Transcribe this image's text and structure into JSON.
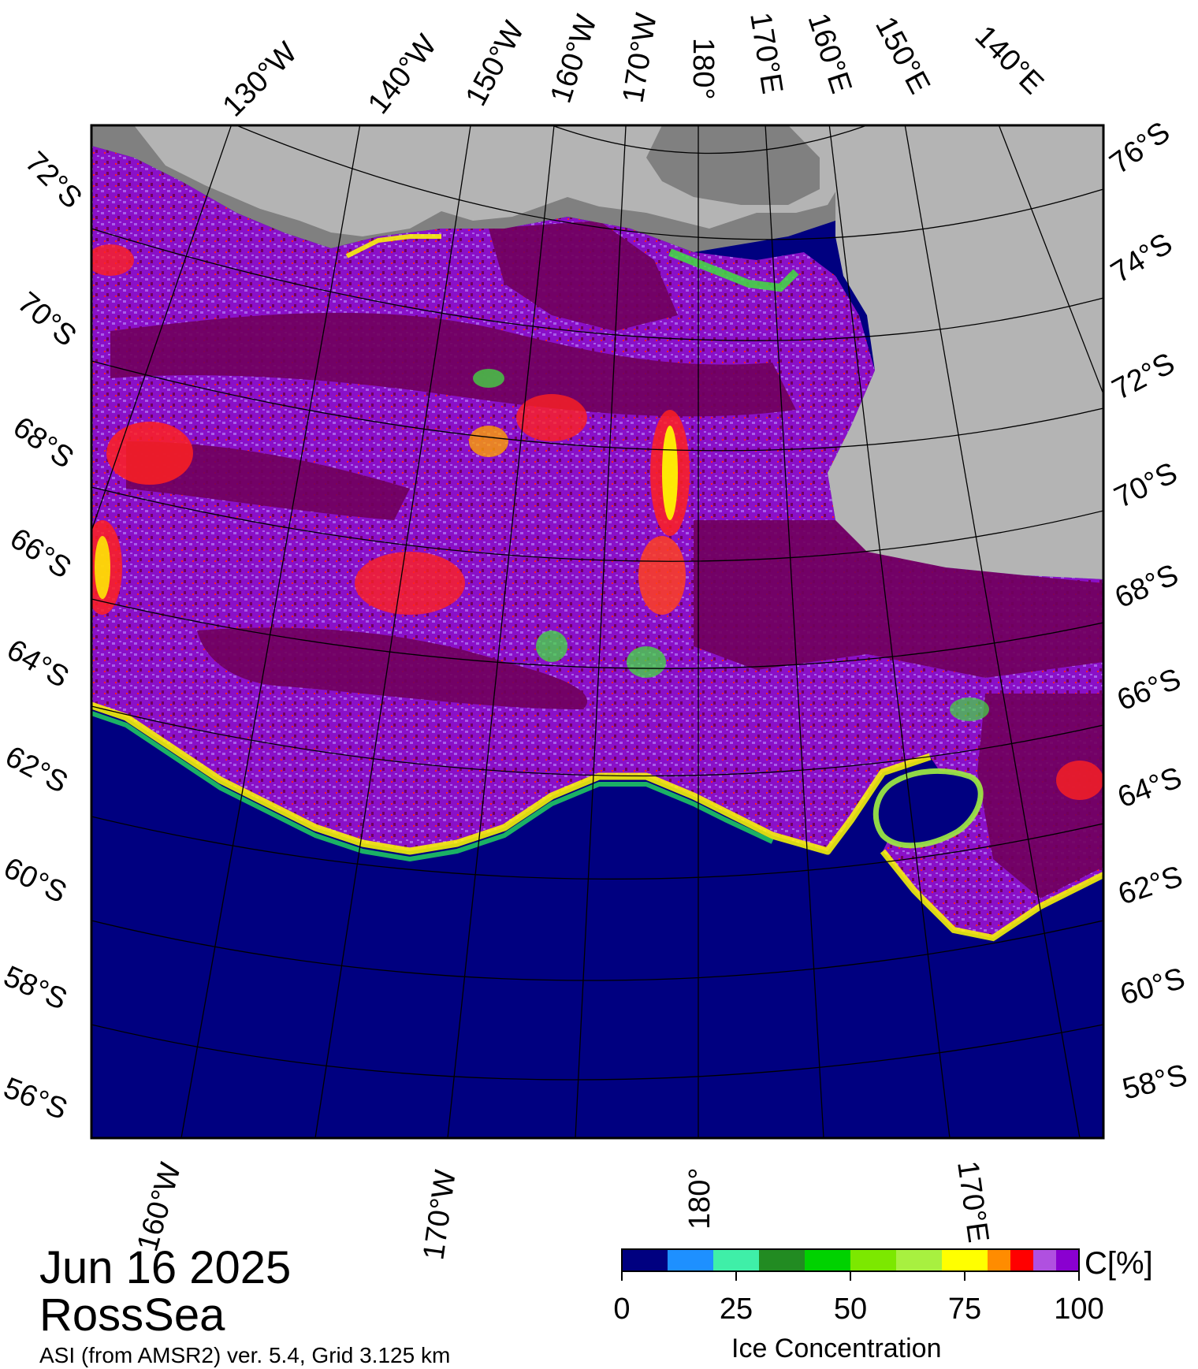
{
  "date": "Jun 16 2025",
  "region": "RossSea",
  "product": "ASI (from AMSR2) ver. 5.4,  Grid 3.125 km",
  "colorbar": {
    "title": "Ice Concentration",
    "unit": "C[%]",
    "ticks": [
      "0",
      "25",
      "50",
      "75",
      "100"
    ],
    "tick_values": [
      0,
      25,
      50,
      75,
      100
    ],
    "colors": [
      "#000080",
      "#1e90ff",
      "#3fefa8",
      "#228b22",
      "#00d200",
      "#7ce800",
      "#a8f040",
      "#ffff00",
      "#ff8c00",
      "#ff0000",
      "#b050e0",
      "#8a00d0"
    ]
  },
  "map": {
    "colors": {
      "open_water": "#000080",
      "land_ice": "#b4b4b4",
      "land_dark": "#808080",
      "sea_ice_full": "#70005c",
      "sea_ice_high": "#8a10c8",
      "sea_ice_mid": "#a860e8",
      "ice_edge_yellow": "#ffff00",
      "ice_edge_green": "#40e040",
      "ice_low_red": "#ff2020"
    },
    "lon_labels_top": [
      "130°W",
      "140°W",
      "150°W",
      "160°W",
      "170°W",
      "180°",
      "170°E",
      "160°E",
      "150°E",
      "140°E"
    ],
    "lat_labels_left": [
      "72°S",
      "70°S",
      "68°S",
      "66°S",
      "64°S",
      "62°S",
      "60°S",
      "58°S",
      "56°S"
    ],
    "lat_labels_right": [
      "76°S",
      "74°S",
      "72°S",
      "70°S",
      "68°S",
      "66°S",
      "64°S",
      "62°S",
      "60°S",
      "58°S"
    ],
    "lon_labels_bottom": [
      "160°W",
      "170°W",
      "180°",
      "170°E"
    ]
  }
}
